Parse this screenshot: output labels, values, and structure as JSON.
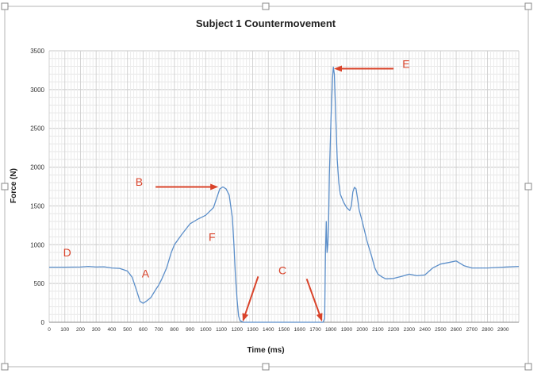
{
  "chart_data": {
    "type": "line",
    "title": "Subject 1 Countermovement",
    "xlabel": "Time (ms)",
    "ylabel": "Force (N)",
    "xlim": [
      0,
      3000
    ],
    "ylim": [
      0,
      3500
    ],
    "x_ticks": [
      0,
      100,
      200,
      300,
      400,
      500,
      600,
      700,
      800,
      900,
      1000,
      1100,
      1200,
      1300,
      1400,
      1500,
      1600,
      1700,
      1800,
      1900,
      2000,
      2100,
      2200,
      2300,
      2400,
      2500,
      2600,
      2700,
      2800,
      2900
    ],
    "y_ticks": [
      0,
      500,
      1000,
      1500,
      2000,
      2500,
      3000,
      3500
    ],
    "grid": true,
    "legend": "none",
    "series": [
      {
        "color": "#5b8ec9",
        "points": [
          [
            0,
            710
          ],
          [
            100,
            710
          ],
          [
            200,
            712
          ],
          [
            250,
            720
          ],
          [
            300,
            712
          ],
          [
            350,
            715
          ],
          [
            400,
            700
          ],
          [
            450,
            695
          ],
          [
            500,
            660
          ],
          [
            530,
            580
          ],
          [
            560,
            400
          ],
          [
            580,
            270
          ],
          [
            600,
            245
          ],
          [
            620,
            270
          ],
          [
            650,
            320
          ],
          [
            680,
            420
          ],
          [
            700,
            480
          ],
          [
            720,
            560
          ],
          [
            750,
            700
          ],
          [
            780,
            900
          ],
          [
            800,
            1000
          ],
          [
            850,
            1140
          ],
          [
            900,
            1270
          ],
          [
            950,
            1330
          ],
          [
            1000,
            1380
          ],
          [
            1030,
            1440
          ],
          [
            1050,
            1480
          ],
          [
            1070,
            1600
          ],
          [
            1090,
            1720
          ],
          [
            1110,
            1745
          ],
          [
            1130,
            1720
          ],
          [
            1150,
            1640
          ],
          [
            1170,
            1350
          ],
          [
            1180,
            1000
          ],
          [
            1190,
            600
          ],
          [
            1200,
            300
          ],
          [
            1210,
            80
          ],
          [
            1220,
            20
          ],
          [
            1240,
            0
          ],
          [
            1300,
            0
          ],
          [
            1400,
            0
          ],
          [
            1500,
            0
          ],
          [
            1600,
            0
          ],
          [
            1700,
            0
          ],
          [
            1750,
            0
          ],
          [
            1760,
            50
          ],
          [
            1765,
            900
          ],
          [
            1770,
            1300
          ],
          [
            1775,
            900
          ],
          [
            1780,
            1000
          ],
          [
            1785,
            1250
          ],
          [
            1790,
            1900
          ],
          [
            1800,
            2600
          ],
          [
            1810,
            3150
          ],
          [
            1815,
            3290
          ],
          [
            1822,
            3200
          ],
          [
            1830,
            2700
          ],
          [
            1840,
            2100
          ],
          [
            1850,
            1800
          ],
          [
            1860,
            1650
          ],
          [
            1880,
            1550
          ],
          [
            1900,
            1480
          ],
          [
            1920,
            1440
          ],
          [
            1930,
            1500
          ],
          [
            1940,
            1680
          ],
          [
            1950,
            1740
          ],
          [
            1960,
            1720
          ],
          [
            1970,
            1600
          ],
          [
            1980,
            1450
          ],
          [
            2000,
            1300
          ],
          [
            2030,
            1050
          ],
          [
            2060,
            850
          ],
          [
            2080,
            700
          ],
          [
            2100,
            620
          ],
          [
            2130,
            580
          ],
          [
            2150,
            560
          ],
          [
            2200,
            565
          ],
          [
            2250,
            590
          ],
          [
            2300,
            620
          ],
          [
            2350,
            600
          ],
          [
            2400,
            610
          ],
          [
            2450,
            700
          ],
          [
            2500,
            750
          ],
          [
            2550,
            770
          ],
          [
            2600,
            790
          ],
          [
            2650,
            730
          ],
          [
            2700,
            700
          ],
          [
            2800,
            700
          ],
          [
            2900,
            710
          ],
          [
            3000,
            720
          ]
        ]
      }
    ],
    "annotations": [
      {
        "label": "A",
        "x": 615,
        "y": 580
      },
      {
        "label": "B",
        "x": 575,
        "y": 1760,
        "arrow_from": [
          680,
          1745
        ],
        "arrow_to": [
          1070,
          1745
        ]
      },
      {
        "label": "C",
        "x": 1490,
        "y": 620
      },
      {
        "label": "D",
        "x": 115,
        "y": 850
      },
      {
        "label": "E",
        "x": 2280,
        "y": 3280,
        "arrow_from": [
          2200,
          3270
        ],
        "arrow_to": [
          1830,
          3270
        ]
      },
      {
        "label": "F",
        "x": 1040,
        "y": 1050
      }
    ],
    "extra_arrows": [
      {
        "from": [
          1335,
          590
        ],
        "to": [
          1240,
          30
        ]
      },
      {
        "from": [
          1645,
          560
        ],
        "to": [
          1740,
          30
        ]
      }
    ],
    "annotation_color": "#d9432a"
  }
}
